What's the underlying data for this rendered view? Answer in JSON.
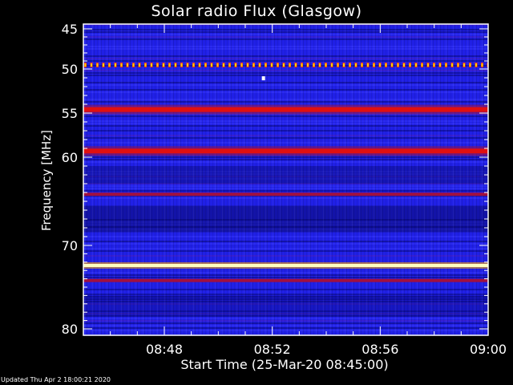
{
  "chart_data": {
    "type": "heatmap",
    "title": "Solar radio Flux (Glasgow)",
    "xlabel": "Start Time (25-Mar-20 08:45:00)",
    "ylabel": "Frequency [MHz]",
    "xlim": [
      "08:45",
      "09:00"
    ],
    "ylim": [
      45,
      80
    ],
    "y_inverted": true,
    "x_ticks": [
      "08:48",
      "08:52",
      "08:56",
      "09:00"
    ],
    "y_ticks": [
      45,
      50,
      55,
      60,
      70,
      80
    ],
    "colormap": "blue-red-yellow-white",
    "background_color": "#2020e6",
    "bands": [
      {
        "freq_mhz": 49.5,
        "level": "red/yellow dotted"
      },
      {
        "freq_mhz": 54.6,
        "level": "red"
      },
      {
        "freq_mhz": 59.3,
        "level": "red"
      },
      {
        "freq_mhz": 64.2,
        "level": "dark red"
      },
      {
        "freq_mhz": 72.4,
        "level": "yellow-white"
      },
      {
        "freq_mhz": 74.2,
        "level": "dark red"
      }
    ]
  },
  "footer": "Updated Thu Apr  2 18:00:21 2020",
  "colors": {
    "background": "#000000",
    "axis": "#ffffff"
  }
}
